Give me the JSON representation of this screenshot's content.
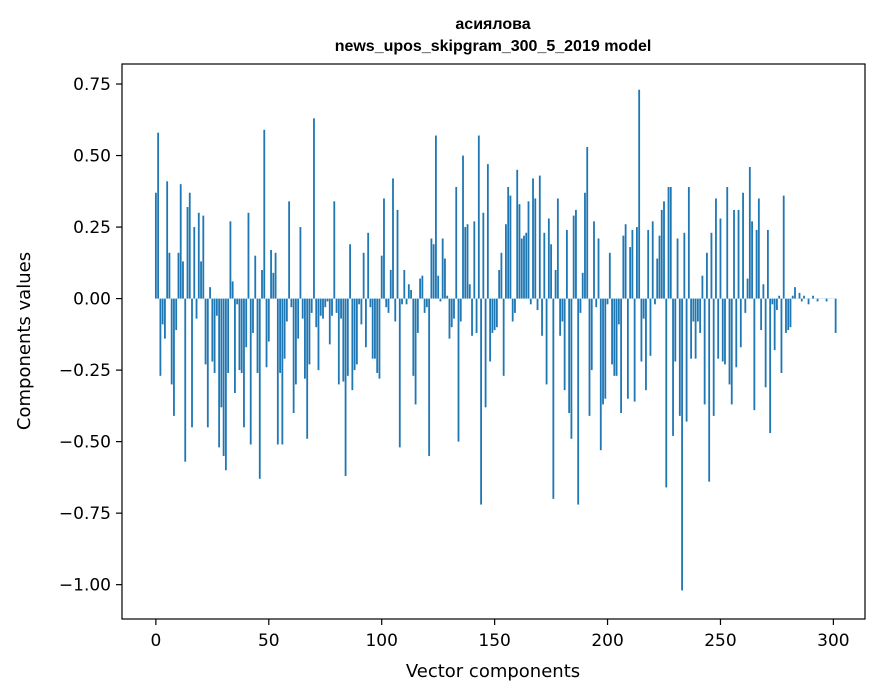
{
  "chart_data": {
    "type": "bar",
    "title": "асиялова",
    "subtitle": "news_upos_skipgram_300_5_2019 model",
    "xlabel": "Vector components",
    "ylabel": "Components values",
    "xlim": [
      -15,
      314
    ],
    "ylim": [
      -1.12,
      0.82
    ],
    "xticks": [
      0,
      50,
      100,
      150,
      200,
      250,
      300
    ],
    "yticks": [
      0.75,
      0.5,
      0.25,
      0.0,
      -0.25,
      -0.5,
      -0.75,
      -1.0
    ],
    "ytick_labels": [
      "0.75",
      "0.50",
      "0.25",
      "0.00",
      "−0.25",
      "−0.50",
      "−0.75",
      "−1.00"
    ],
    "xtick_labels": [
      "0",
      "50",
      "100",
      "150",
      "200",
      "250",
      "300"
    ],
    "series": [
      {
        "name": "асиялова",
        "color": "#1f77b4",
        "values": [
          0.37,
          0.58,
          -0.27,
          -0.09,
          -0.14,
          0.41,
          0.16,
          -0.3,
          -0.41,
          -0.11,
          0.16,
          0.4,
          0.13,
          -0.57,
          0.32,
          0.37,
          -0.45,
          0.25,
          -0.07,
          0.3,
          0.13,
          0.29,
          -0.23,
          -0.45,
          0.04,
          -0.22,
          -0.26,
          -0.06,
          -0.52,
          -0.38,
          -0.55,
          -0.6,
          -0.26,
          0.27,
          0.06,
          -0.33,
          -0.02,
          -0.25,
          -0.26,
          -0.45,
          -0.17,
          0.3,
          -0.51,
          -0.12,
          0.15,
          -0.26,
          -0.63,
          0.1,
          0.59,
          -0.24,
          -0.15,
          0.17,
          0.09,
          0.16,
          -0.51,
          -0.26,
          -0.51,
          -0.21,
          -0.08,
          0.34,
          -0.03,
          -0.4,
          -0.3,
          -0.14,
          0.25,
          -0.07,
          -0.28,
          -0.49,
          -0.23,
          -0.05,
          0.63,
          -0.1,
          -0.25,
          -0.06,
          -0.07,
          -0.03,
          -0.01,
          -0.16,
          -0.06,
          0.34,
          -0.05,
          -0.3,
          -0.07,
          -0.29,
          -0.62,
          -0.27,
          0.19,
          -0.32,
          -0.25,
          -0.23,
          -0.02,
          -0.09,
          0.16,
          -0.17,
          0.23,
          -0.03,
          -0.21,
          -0.21,
          -0.26,
          -0.28,
          0.15,
          0.35,
          -0.03,
          -0.05,
          0.1,
          0.42,
          -0.08,
          0.31,
          -0.52,
          -0.02,
          0.1,
          -0.02,
          0.05,
          0.03,
          -0.27,
          -0.37,
          -0.12,
          0.07,
          0.08,
          -0.05,
          -0.03,
          -0.55,
          0.21,
          0.19,
          0.57,
          0.08,
          -0.01,
          0.21,
          0.14,
          0.01,
          -0.14,
          -0.1,
          -0.07,
          0.39,
          -0.5,
          -0.08,
          0.5,
          0.25,
          0.26,
          0.05,
          -0.13,
          0.27,
          -0.12,
          0.57,
          -0.72,
          0.3,
          -0.38,
          0.47,
          -0.22,
          -0.12,
          -0.11,
          -0.1,
          0.1,
          0.16,
          -0.27,
          0.26,
          0.39,
          0.36,
          -0.08,
          -0.05,
          0.45,
          0.33,
          0.21,
          0.22,
          0.23,
          0.34,
          -0.02,
          0.42,
          0.35,
          -0.04,
          0.43,
          -0.13,
          0.23,
          -0.3,
          0.28,
          0.19,
          -0.7,
          0.1,
          0.35,
          -0.13,
          -0.08,
          -0.32,
          0.24,
          -0.4,
          -0.49,
          0.29,
          0.31,
          -0.72,
          -0.05,
          0.09,
          0.37,
          0.53,
          -0.41,
          -0.25,
          0.27,
          -0.03,
          0.21,
          -0.53,
          -0.37,
          -0.35,
          -0.02,
          0.16,
          -0.23,
          -0.27,
          -0.27,
          -0.09,
          -0.4,
          0.22,
          0.26,
          -0.35,
          0.18,
          0.24,
          -0.36,
          0.25,
          0.73,
          -0.22,
          -0.07,
          -0.32,
          0.24,
          -0.2,
          0.27,
          -0.02,
          0.14,
          0.22,
          0.31,
          0.34,
          -0.66,
          0.39,
          0.39,
          -0.48,
          -0.22,
          0.21,
          -0.41,
          -1.02,
          0.23,
          -0.43,
          0.39,
          -0.21,
          -0.08,
          -0.21,
          -0.08,
          -0.12,
          0.08,
          -0.37,
          0.16,
          -0.64,
          0.23,
          -0.41,
          0.35,
          -0.21,
          0.28,
          -0.22,
          -0.23,
          0.39,
          -0.3,
          -0.37,
          0.31,
          -0.24,
          0.31,
          -0.17,
          0.37,
          -0.05,
          0.07,
          0.46,
          0.27,
          -0.39,
          0.24,
          0.35,
          -0.11,
          0.05,
          -0.31,
          0.24,
          -0.47,
          -0.02,
          -0.18,
          -0.04,
          0.01,
          -0.26,
          0.36,
          -0.12,
          -0.11,
          -0.1,
          0.01,
          0.04,
          0.0,
          0.02,
          -0.01,
          0.01,
          0.0,
          -0.02,
          0.0,
          0.01,
          0.0,
          -0.01,
          0.0,
          0.0,
          0.0,
          -0.01,
          0.0,
          0.0,
          0.0,
          -0.12
        ]
      }
    ]
  }
}
